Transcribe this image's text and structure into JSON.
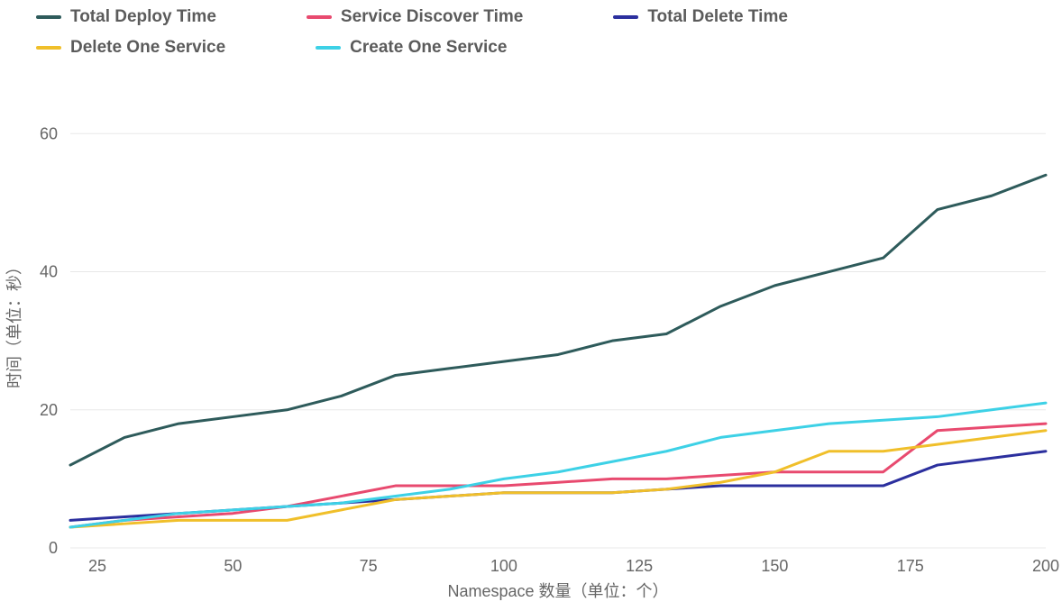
{
  "chart": {
    "type": "line",
    "background_color": "#ffffff",
    "grid_color": "#e8e8e8",
    "tick_label_color": "#666666",
    "tick_label_fontsize": 18,
    "axis_label_color": "#666666",
    "axis_label_fontsize": 18,
    "line_width": 3,
    "legend_font_weight": 700,
    "legend_fontsize": 19,
    "legend_text_color": "#5b5b5b",
    "x_label": "Namespace 数量（单位：个）",
    "y_label": "时间（单位：秒）",
    "xlim": [
      20,
      200
    ],
    "ylim": [
      0,
      65
    ],
    "x_ticks": [
      25,
      50,
      75,
      100,
      125,
      150,
      175,
      200
    ],
    "y_ticks": [
      0,
      20,
      40,
      60
    ],
    "x_values": [
      20,
      30,
      40,
      50,
      60,
      70,
      80,
      90,
      100,
      110,
      120,
      130,
      140,
      150,
      160,
      170,
      180,
      190,
      200
    ],
    "series": [
      {
        "name": "Total Deploy Time",
        "color": "#2e5b5b",
        "values": [
          12,
          16,
          18,
          19,
          20,
          22,
          25,
          26,
          27,
          28,
          30,
          31,
          35,
          38,
          40,
          42,
          49,
          51,
          54
        ]
      },
      {
        "name": "Service Discover Time",
        "color": "#e84a6f",
        "values": [
          3,
          4,
          4.5,
          5,
          6,
          7.5,
          9,
          9,
          9,
          9.5,
          10,
          10,
          10.5,
          11,
          11,
          11,
          17,
          17.5,
          18
        ]
      },
      {
        "name": "Total Delete Time",
        "color": "#2b2f9e",
        "values": [
          4,
          4.5,
          5,
          5.5,
          6,
          6.5,
          7,
          7.5,
          8,
          8,
          8,
          8.5,
          9,
          9,
          9,
          9,
          12,
          13,
          14
        ]
      },
      {
        "name": "Delete One Service",
        "color": "#f0bf2a",
        "values": [
          3,
          3.5,
          4,
          4,
          4,
          5.5,
          7,
          7.5,
          8,
          8,
          8,
          8.5,
          9.5,
          11,
          14,
          14,
          15,
          16,
          17
        ]
      },
      {
        "name": "Create One Service",
        "color": "#3dd1e6",
        "values": [
          3,
          4,
          5,
          5.5,
          6,
          6.5,
          7.5,
          8.5,
          10,
          11,
          12.5,
          14,
          16,
          17,
          18,
          18.5,
          19,
          20,
          21
        ]
      }
    ]
  }
}
